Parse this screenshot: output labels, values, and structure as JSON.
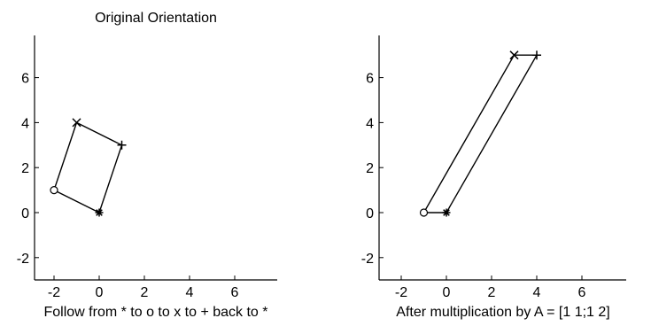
{
  "chart_data": [
    {
      "type": "line",
      "title": "Original Orientation",
      "xlabel": "Follow from * to o to x to + back to *",
      "ylabel": "",
      "xlim": [
        -3,
        8
      ],
      "ylim": [
        -3,
        8
      ],
      "xticks": [
        "-2",
        "0",
        "2",
        "4",
        "6"
      ],
      "yticks": [
        "-2",
        "0",
        "2",
        "4",
        "6"
      ],
      "grid": false,
      "series": [
        {
          "x": [
            0,
            -2,
            -1,
            1,
            0
          ],
          "y": [
            0,
            1,
            4,
            3,
            0
          ],
          "markers": [
            "*",
            "o",
            "x",
            "+"
          ]
        }
      ]
    },
    {
      "type": "line",
      "title": "",
      "xlabel": "After multiplication by A = [1 1;1 2]",
      "ylabel": "",
      "xlim": [
        -3,
        8
      ],
      "ylim": [
        -3,
        8
      ],
      "xticks": [
        "-2",
        "0",
        "2",
        "4",
        "6"
      ],
      "yticks": [
        "-2",
        "0",
        "2",
        "4",
        "6"
      ],
      "grid": false,
      "series": [
        {
          "x": [
            0,
            -1,
            3,
            4,
            0
          ],
          "y": [
            0,
            0,
            7,
            7,
            0
          ],
          "markers": [
            "*",
            "o",
            "x",
            "+"
          ]
        }
      ]
    }
  ]
}
